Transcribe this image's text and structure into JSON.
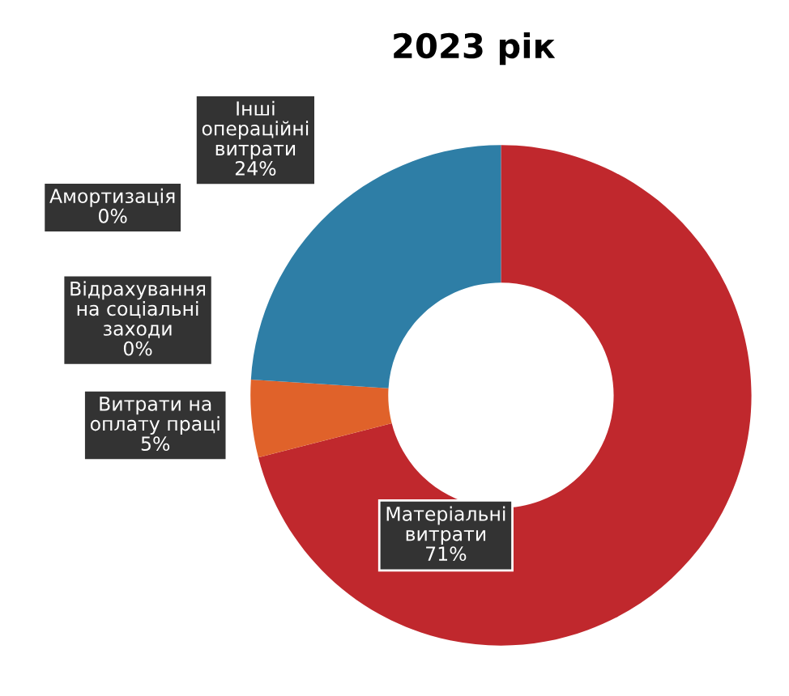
{
  "chart_data": {
    "type": "donut",
    "title": "2023 рік",
    "categories": [
      "Матеріальні витрати",
      "Витрати на оплату праці",
      "Відрахування на соціальні заходи",
      "Амортизація",
      "Інші операційні витрати"
    ],
    "values": [
      71,
      5,
      0,
      0,
      24
    ],
    "colors": [
      "#c0282d",
      "#e0622a",
      "#f0c020",
      "#a0a0a0",
      "#2e7ea6"
    ],
    "value_labels": [
      "71%",
      "5%",
      "0%",
      "0%",
      "24%"
    ],
    "legend": false
  }
}
